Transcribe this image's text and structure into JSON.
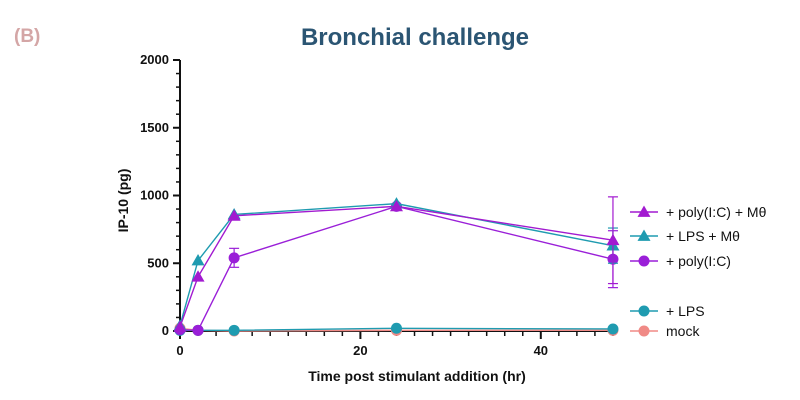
{
  "panel_label": "(B)",
  "chart_data": {
    "type": "line",
    "title": "Bronchial challenge",
    "xlabel": "Time post stimulant addition (hr)",
    "ylabel": "IP-10 (pg)",
    "xlim": [
      0,
      48
    ],
    "ylim": [
      0,
      2000
    ],
    "x_ticks": [
      0,
      20,
      40
    ],
    "y_ticks": [
      0,
      500,
      1000,
      1500,
      2000
    ],
    "grid": false,
    "legend_position": "right",
    "series": [
      {
        "name": "+ poly(I:C) + Mθ",
        "marker": "triangle",
        "color": "#a21ad0",
        "x": [
          0,
          2,
          6,
          24,
          48
        ],
        "y": [
          30,
          400,
          850,
          920,
          670
        ],
        "err": [
          0,
          0,
          0,
          0,
          320
        ]
      },
      {
        "name": "+ LPS + Mθ",
        "marker": "triangle",
        "color": "#1f9bb0",
        "x": [
          0,
          2,
          6,
          24,
          48
        ],
        "y": [
          40,
          520,
          860,
          940,
          630
        ],
        "err": [
          0,
          0,
          0,
          0,
          130
        ]
      },
      {
        "name": "+ poly(I:C)",
        "marker": "circle",
        "color": "#9a1fd8",
        "x": [
          0,
          2,
          6,
          24,
          48
        ],
        "y": [
          10,
          5,
          540,
          920,
          530
        ],
        "err": [
          0,
          0,
          70,
          0,
          210
        ]
      },
      {
        "name": "+ LPS",
        "marker": "circle",
        "color": "#1f9bb0",
        "x": [
          0,
          2,
          6,
          24,
          48
        ],
        "y": [
          5,
          5,
          5,
          20,
          15
        ],
        "err": [
          0,
          0,
          0,
          0,
          0
        ]
      },
      {
        "name": "mock",
        "marker": "circle",
        "color": "#f08a86",
        "x": [
          0,
          2,
          6,
          24,
          48
        ],
        "y": [
          20,
          5,
          0,
          5,
          5
        ],
        "err": [
          0,
          0,
          0,
          0,
          0
        ]
      }
    ]
  }
}
